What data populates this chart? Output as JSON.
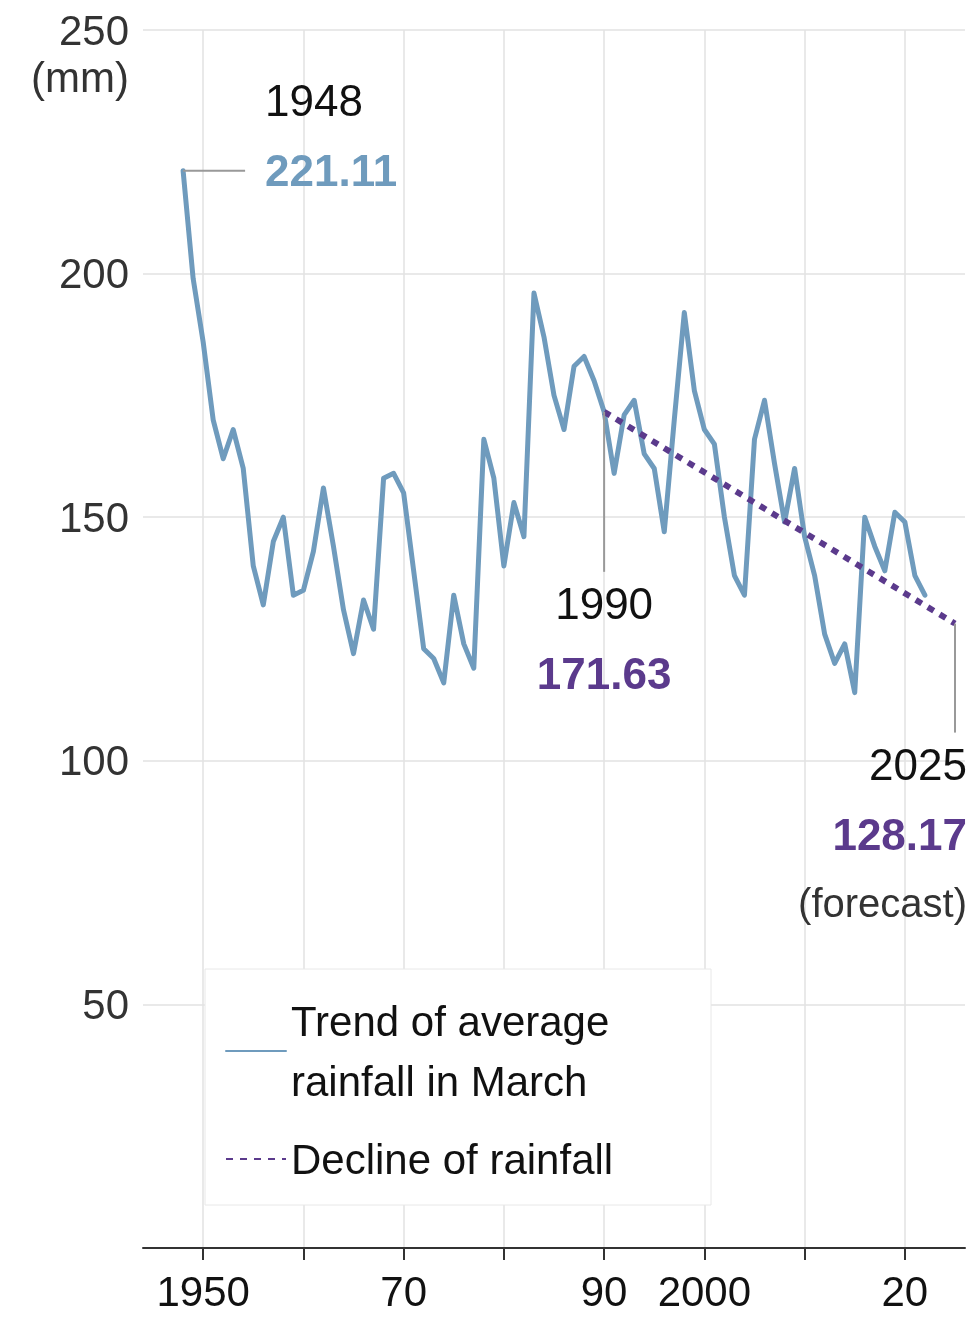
{
  "chart_data": {
    "type": "line",
    "ylabel": "(mm)",
    "xlim": [
      1944,
      2026
    ],
    "xticks": [
      {
        "value": 1950,
        "label": "1950"
      },
      {
        "value": 1960,
        "label": null
      },
      {
        "value": 1970,
        "label": "70"
      },
      {
        "value": 1980,
        "label": null
      },
      {
        "value": 1990,
        "label": "90"
      },
      {
        "value": 2000,
        "label": "2000"
      },
      {
        "value": 2010,
        "label": null
      },
      {
        "value": 2020,
        "label": "20"
      }
    ],
    "ylim": [
      0,
      250
    ],
    "yticks": [
      {
        "value": 0,
        "label": null
      },
      50,
      100,
      150,
      200,
      250
    ],
    "grid": true,
    "legend": "bottom left",
    "marker": "none",
    "series": [
      {
        "name": "Trend of average rainfall in March",
        "color": "#6f9bbd",
        "line_style": "solid",
        "x": [
          1948,
          1949,
          1950,
          1951,
          1952,
          1953,
          1954,
          1955,
          1956,
          1957,
          1958,
          1959,
          1960,
          1961,
          1962,
          1963,
          1964,
          1965,
          1966,
          1967,
          1968,
          1969,
          1970,
          1971,
          1972,
          1973,
          1974,
          1975,
          1976,
          1977,
          1978,
          1979,
          1980,
          1981,
          1982,
          1983,
          1984,
          1985,
          1986,
          1987,
          1988,
          1989,
          1990,
          1991,
          1992,
          1993,
          1994,
          1995,
          1996,
          1997,
          1998,
          1999,
          2000,
          2001,
          2002,
          2003,
          2004,
          2005,
          2006,
          2007,
          2008,
          2009,
          2010,
          2011,
          2012,
          2013,
          2014,
          2015,
          2016,
          2017,
          2018,
          2019,
          2020,
          2021,
          2022
        ],
        "values": [
          221.11,
          199,
          186,
          170,
          162,
          168,
          160,
          140,
          132,
          145,
          150,
          134,
          135,
          143,
          156,
          144,
          131,
          122,
          133,
          127,
          158,
          159,
          155,
          139,
          123,
          121,
          116,
          134,
          124,
          119,
          166,
          158,
          140,
          153,
          146,
          196,
          187,
          175,
          168,
          181,
          183,
          178,
          171.63,
          159,
          171,
          174,
          163,
          160,
          147,
          170,
          192,
          176,
          168,
          165,
          150,
          138,
          134,
          166,
          174,
          161,
          149,
          160,
          146,
          138,
          126,
          120,
          124,
          114,
          150,
          144,
          139,
          151,
          149,
          138,
          134
        ]
      },
      {
        "name": "Decline of rainfall",
        "color": "#5b3a8c",
        "line_style": "dotted",
        "x": [
          1990,
          2025
        ],
        "values": [
          171.63,
          128.17
        ]
      }
    ],
    "annotations": [
      {
        "text": "1948",
        "x": 1948,
        "y": 221.11
      },
      {
        "text": "221.11",
        "x": 1948,
        "y": 221.11
      },
      {
        "text": "1990",
        "x": 1990,
        "y": 171.63
      },
      "171.63",
      {
        "text": "2025",
        "x": 2025,
        "y": 128.17
      },
      "128.17",
      "(forecast)"
    ]
  }
}
